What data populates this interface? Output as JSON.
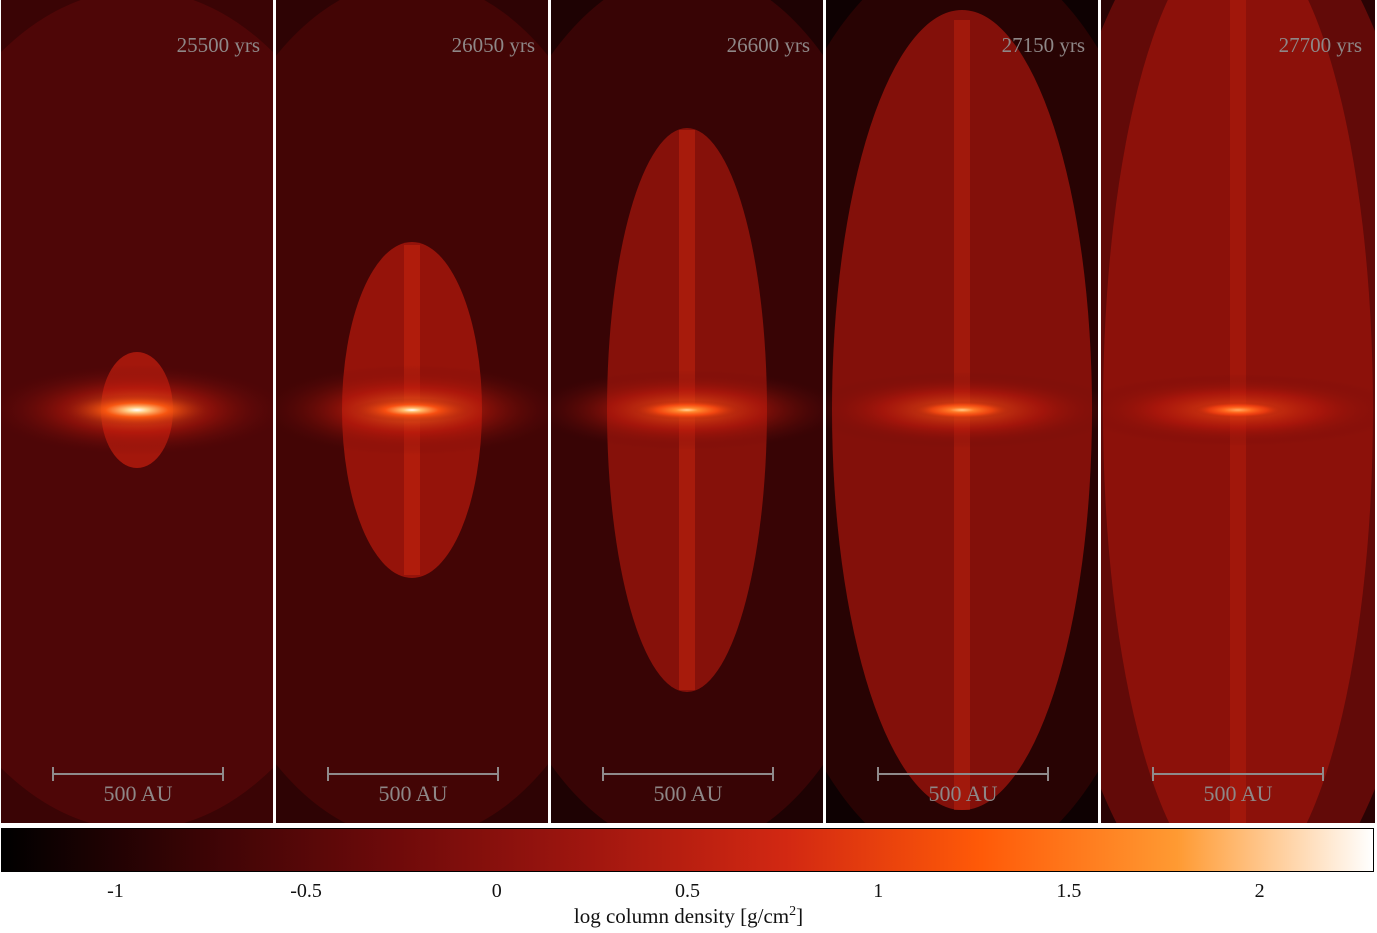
{
  "panels": [
    {
      "time": "25500 yrs",
      "scale": "500 AU",
      "lobe": 0.0
    },
    {
      "time": "26050 yrs",
      "scale": "500 AU",
      "lobe": 0.3
    },
    {
      "time": "26600 yrs",
      "scale": "500 AU",
      "lobe": 0.55
    },
    {
      "time": "27150 yrs",
      "scale": "500 AU",
      "lobe": 0.85
    },
    {
      "time": "27700 yrs",
      "scale": "500 AU",
      "lobe": 1.0
    }
  ],
  "colorbar": {
    "ticks": [
      "-1",
      "-0.5",
      "0",
      "0.5",
      "1",
      "1.5",
      "2"
    ],
    "tick_values": [
      -1,
      -0.5,
      0,
      0.5,
      1,
      1.5,
      2
    ],
    "range": [
      -1.3,
      2.3
    ],
    "label_main": "log column density [g/cm",
    "label_sup": "2",
    "label_end": "]",
    "colors": [
      "#000000",
      "#3a0405",
      "#6e0a0a",
      "#a0160f",
      "#d22812",
      "#ff5a08",
      "#ff9a32",
      "#ffffff"
    ]
  }
}
